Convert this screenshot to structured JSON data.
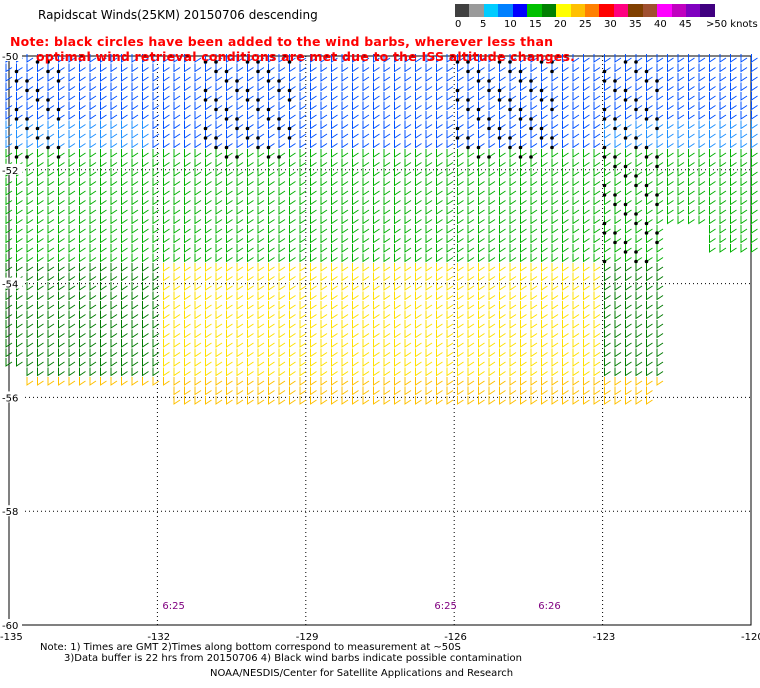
{
  "header": {
    "title": "Rapidscat Winds(25KM) 20150706 descending",
    "note_line1": "Note: black circles have been added to the wind barbs, wherever less than",
    "note_line2": "optimal wind retrieval conditions are met due to the ISS altitude changes."
  },
  "colorbar": {
    "colors": [
      "#404040",
      "#9a9a9a",
      "#00ccff",
      "#0080ff",
      "#0000ff",
      "#00c000",
      "#008000",
      "#ffff00",
      "#ffc000",
      "#ff8000",
      "#ff0000",
      "#ff0080",
      "#804000",
      "#a05030",
      "#ff00ff",
      "#c000c0",
      "#8000c0",
      "#400080"
    ],
    "labels": [
      "0",
      "5",
      "10",
      "15",
      "20",
      "25",
      "30",
      "35",
      "40",
      "45",
      ">50 knots"
    ]
  },
  "map": {
    "lon_labels": [
      "-135",
      "-132",
      "-129",
      "-126",
      "-123",
      "-120"
    ],
    "lat_labels": [
      "-50",
      "-52",
      "-54",
      "-56",
      "-58",
      "-60"
    ],
    "time_labels": [
      {
        "text": "6:25",
        "lon": -131.9
      },
      {
        "text": "6:25",
        "lon": -126.4
      },
      {
        "text": "6:26",
        "lon": -124.3
      }
    ]
  },
  "footer": {
    "line1": "Note: 1) Times are GMT 2)Times along bottom correspond to measurement at ~50S",
    "line2": "3)Data buffer is 22 hrs from 20150706 4) Black wind barbs indicate possible contamination",
    "credit": "NOAA/NESDIS/Center for Satellite Applications and Research"
  }
}
